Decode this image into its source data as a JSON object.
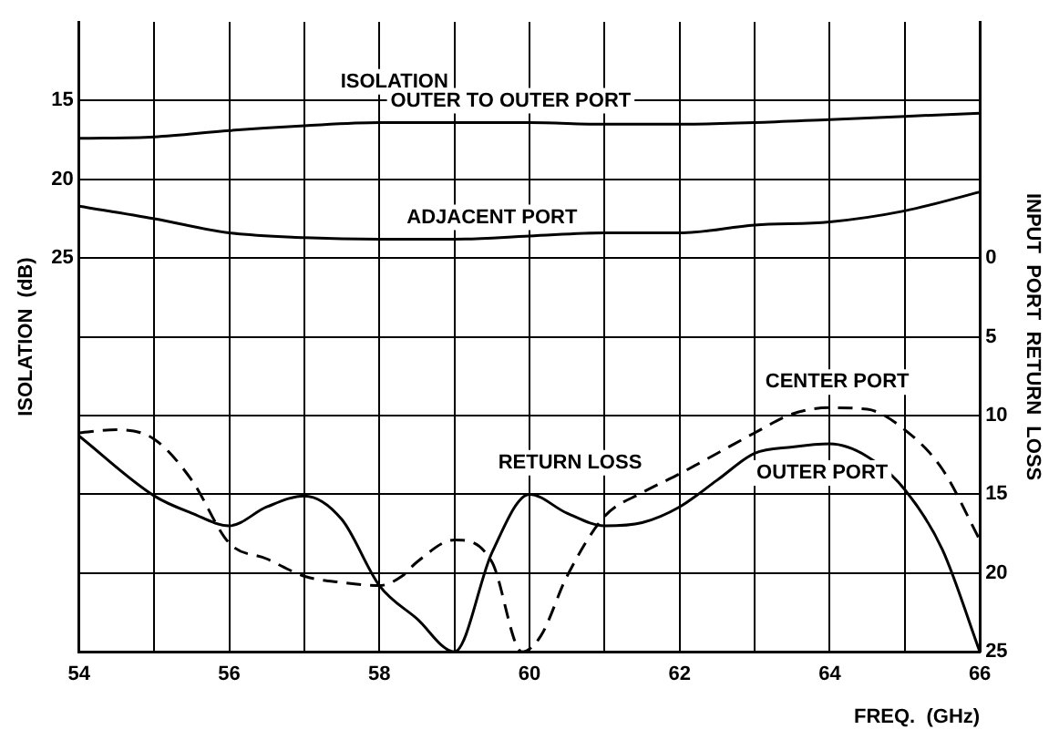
{
  "chart_data": {
    "type": "line",
    "xlabel": "FREQ.  (GHz)",
    "ylabel": "ISOLATION  (dB)",
    "y2label": "INPUT  PORT  RETURN  LOSS",
    "xlim": [
      54,
      66
    ],
    "xticks": [
      54,
      {
        "value": 55,
        "label": null
      },
      56,
      {
        "value": 57,
        "label": null
      },
      58,
      {
        "value": 59,
        "label": null
      },
      60,
      {
        "value": 61,
        "label": null
      },
      62,
      {
        "value": 63,
        "label": null
      },
      64,
      {
        "value": 65,
        "label": null
      },
      66
    ],
    "ylim": [
      50,
      10
    ],
    "yticks": [
      15,
      20,
      25
    ],
    "y2lim": [
      25,
      -15
    ],
    "y2ticks": [
      0,
      5,
      10,
      15,
      20,
      25
    ],
    "grid": true,
    "legend": false,
    "marker": "none",
    "annotations": [
      "ISOLATION",
      "RETURN LOSS"
    ],
    "series": [
      {
        "name": "OUTER TO OUTER PORT",
        "color": "#000000",
        "line_style": "solid",
        "x": [
          54,
          55,
          56,
          57,
          58,
          59,
          60,
          61,
          62,
          63,
          64,
          65,
          66
        ],
        "values": [
          17.4,
          17.3,
          16.9,
          16.6,
          16.4,
          16.4,
          16.4,
          16.5,
          16.5,
          16.4,
          16.2,
          16.0,
          15.8
        ]
      },
      {
        "name": "ADJACENT PORT",
        "color": "#000000",
        "line_style": "solid",
        "x": [
          54,
          55,
          56,
          57,
          58,
          59,
          60,
          61,
          62,
          63,
          64,
          65,
          66
        ],
        "values": [
          21.7,
          22.5,
          23.4,
          23.7,
          23.8,
          23.8,
          23.6,
          23.4,
          23.4,
          22.9,
          22.7,
          22.0,
          20.8
        ]
      },
      {
        "name": "CENTER PORT",
        "color": "#000000",
        "line_style": "dashed",
        "axis": "y2",
        "x": [
          54,
          54.5,
          55,
          55.5,
          56,
          56.5,
          57,
          57.5,
          58,
          58.3,
          58.5,
          59,
          59.5,
          59.9,
          60.15,
          60.5,
          61,
          61.5,
          62,
          62.5,
          63,
          63.5,
          64,
          64.5,
          65,
          65.5,
          66
        ],
        "values": [
          11.1,
          10.9,
          11.5,
          14.1,
          18.1,
          19.1,
          20.2,
          20.6,
          20.8,
          20.2,
          19.3,
          17.9,
          19.3,
          25,
          24.0,
          20.2,
          16.4,
          14.9,
          13.7,
          12.4,
          11.1,
          9.9,
          9.5,
          9.6,
          10.9,
          13.4,
          17.9
        ]
      },
      {
        "name": "OUTER PORT",
        "color": "#000000",
        "line_style": "solid",
        "axis": "y2",
        "x": [
          54,
          55,
          55.5,
          56,
          56.5,
          57,
          57.5,
          58,
          58.5,
          59,
          59.5,
          60,
          60.5,
          61,
          61.5,
          62,
          62.5,
          63,
          63.5,
          64,
          64.5,
          65,
          65.5,
          66
        ],
        "values": [
          11.3,
          15.1,
          16.2,
          17.0,
          15.8,
          15.1,
          16.6,
          20.8,
          22.9,
          25,
          18.7,
          15.0,
          16.2,
          17.0,
          16.8,
          15.8,
          14.1,
          12.4,
          12.0,
          11.8,
          12.6,
          14.7,
          18.5,
          25
        ]
      }
    ]
  }
}
